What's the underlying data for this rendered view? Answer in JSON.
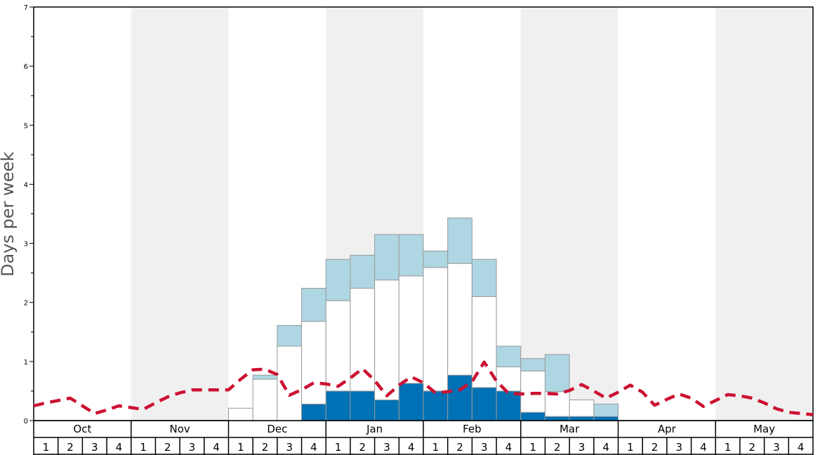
{
  "chart_data": {
    "type": "bar",
    "ylabel": "Days per week",
    "ylim": [
      0,
      7
    ],
    "y_ticks_major": [
      0,
      1,
      2,
      3,
      4,
      5,
      6,
      7
    ],
    "y_ticks_minor_step": 0.5,
    "months": [
      "Oct",
      "Nov",
      "Dec",
      "Jan",
      "Feb",
      "Mar",
      "Apr",
      "May"
    ],
    "weeks": [
      "1",
      "2",
      "3",
      "4"
    ],
    "shaded_months": [
      "Nov",
      "Jan",
      "Mar",
      "May"
    ],
    "stack_series": [
      {
        "key": "dark",
        "color": "#0071b5",
        "values": [
          0,
          0,
          0,
          0,
          0,
          0,
          0,
          0,
          0,
          0,
          0,
          0.28,
          0.5,
          0.5,
          0.35,
          0.63,
          0.5,
          0.77,
          0.56,
          0.5,
          0.14,
          0.07,
          0.07,
          0.07,
          0,
          0,
          0,
          0,
          0,
          0,
          0,
          0
        ]
      },
      {
        "key": "white",
        "color": "#ffffff",
        "values": [
          0,
          0,
          0,
          0,
          0,
          0,
          0,
          0,
          0.21,
          0.7,
          1.26,
          1.4,
          1.53,
          1.74,
          2.03,
          1.82,
          2.09,
          1.89,
          1.54,
          0.41,
          0.7,
          0.42,
          0.28,
          0,
          0,
          0,
          0,
          0,
          0,
          0,
          0,
          0
        ]
      },
      {
        "key": "light",
        "color": "#aed6e3",
        "values": [
          0,
          0,
          0,
          0,
          0,
          0,
          0,
          0,
          0,
          0.07,
          0.35,
          0.56,
          0.7,
          0.56,
          0.77,
          0.7,
          0.28,
          0.77,
          0.63,
          0.35,
          0.21,
          0.63,
          0,
          0.21,
          0,
          0,
          0,
          0,
          0,
          0,
          0,
          0
        ]
      }
    ],
    "avg_line": {
      "color": "#cc1133",
      "x": [
        0,
        0.5,
        1,
        1.5,
        2,
        2.5,
        3,
        3.5,
        4,
        4.5,
        5,
        5.5,
        6,
        6.5,
        7,
        7.5,
        8,
        8.5,
        9,
        9.5,
        10,
        10.5,
        11,
        11.5,
        12,
        12.5,
        13,
        13.5,
        14,
        14.5,
        15,
        15.5,
        16,
        16.5,
        17,
        17.5,
        18,
        18.5,
        19,
        19.5,
        20,
        20.5,
        21,
        21.5,
        22,
        22.5,
        23,
        23.5,
        24,
        24.5,
        25,
        25.5,
        26,
        26.5,
        27,
        27.5,
        28,
        28.5,
        29,
        29.5,
        30,
        30.5,
        31,
        31.5,
        32
      ],
      "y": [
        0.25,
        0.3,
        0.34,
        0.38,
        0.25,
        0.12,
        0.18,
        0.25,
        0.22,
        0.19,
        0.3,
        0.4,
        0.47,
        0.52,
        0.52,
        0.52,
        0.52,
        0.7,
        0.86,
        0.87,
        0.78,
        0.43,
        0.52,
        0.64,
        0.62,
        0.58,
        0.72,
        0.88,
        0.68,
        0.42,
        0.6,
        0.74,
        0.64,
        0.47,
        0.49,
        0.52,
        0.66,
        0.99,
        0.67,
        0.46,
        0.45,
        0.46,
        0.46,
        0.45,
        0.51,
        0.61,
        0.5,
        0.38,
        0.48,
        0.6,
        0.48,
        0.26,
        0.36,
        0.45,
        0.38,
        0.24,
        0.34,
        0.44,
        0.42,
        0.38,
        0.3,
        0.2,
        0.14,
        0.12,
        0.1
      ]
    }
  }
}
